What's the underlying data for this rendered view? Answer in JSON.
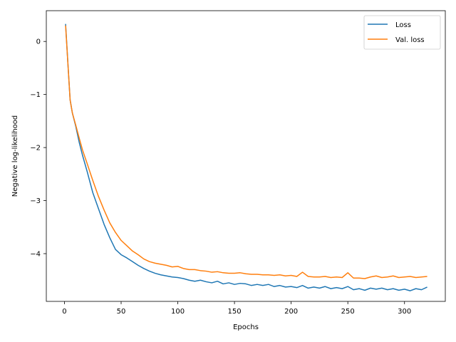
{
  "chart_data": {
    "type": "line",
    "title": "",
    "xlabel": "Epochs",
    "ylabel": "Negative log-likelihood",
    "xlim": [
      -16,
      336
    ],
    "ylim": [
      -4.9,
      0.58
    ],
    "xticks": [
      0,
      50,
      100,
      150,
      200,
      250,
      300
    ],
    "yticks": [
      0,
      -1,
      -2,
      -3,
      -4
    ],
    "ytick_labels": [
      "0",
      "−1",
      "−2",
      "−3",
      "−4"
    ],
    "grid": false,
    "legend_position": "top-right",
    "series": [
      {
        "name": "Loss",
        "color": "#1f77b4",
        "x": [
          1,
          3,
          5,
          7,
          10,
          13,
          16,
          20,
          25,
          30,
          35,
          40,
          45,
          50,
          55,
          60,
          65,
          70,
          75,
          80,
          85,
          90,
          95,
          100,
          105,
          110,
          115,
          120,
          125,
          130,
          135,
          140,
          145,
          150,
          155,
          160,
          165,
          170,
          175,
          180,
          185,
          190,
          195,
          200,
          205,
          210,
          215,
          220,
          225,
          230,
          235,
          240,
          245,
          250,
          255,
          260,
          265,
          270,
          275,
          280,
          285,
          290,
          295,
          300,
          305,
          310,
          315,
          320
        ],
        "y": [
          0.33,
          -0.4,
          -1.1,
          -1.35,
          -1.6,
          -1.9,
          -2.15,
          -2.45,
          -2.85,
          -3.15,
          -3.45,
          -3.7,
          -3.92,
          -4.02,
          -4.08,
          -4.15,
          -4.22,
          -4.28,
          -4.33,
          -4.37,
          -4.4,
          -4.42,
          -4.44,
          -4.45,
          -4.47,
          -4.5,
          -4.52,
          -4.5,
          -4.53,
          -4.55,
          -4.52,
          -4.57,
          -4.55,
          -4.58,
          -4.56,
          -4.57,
          -4.6,
          -4.58,
          -4.6,
          -4.58,
          -4.62,
          -4.6,
          -4.63,
          -4.62,
          -4.64,
          -4.6,
          -4.65,
          -4.63,
          -4.65,
          -4.62,
          -4.66,
          -4.64,
          -4.66,
          -4.62,
          -4.68,
          -4.66,
          -4.69,
          -4.65,
          -4.67,
          -4.65,
          -4.68,
          -4.66,
          -4.69,
          -4.67,
          -4.7,
          -4.66,
          -4.68,
          -4.63
        ]
      },
      {
        "name": "Val. loss",
        "color": "#ff7f0e",
        "x": [
          1,
          3,
          5,
          7,
          10,
          13,
          16,
          20,
          25,
          30,
          35,
          40,
          45,
          50,
          55,
          60,
          65,
          70,
          75,
          80,
          85,
          90,
          95,
          100,
          105,
          110,
          115,
          120,
          125,
          130,
          135,
          140,
          145,
          150,
          155,
          160,
          165,
          170,
          175,
          180,
          185,
          190,
          195,
          200,
          205,
          210,
          215,
          220,
          225,
          230,
          235,
          240,
          245,
          250,
          255,
          260,
          265,
          270,
          275,
          280,
          285,
          290,
          295,
          300,
          305,
          310,
          315,
          320
        ],
        "y": [
          0.3,
          -0.4,
          -1.1,
          -1.35,
          -1.58,
          -1.82,
          -2.05,
          -2.3,
          -2.62,
          -2.92,
          -3.18,
          -3.42,
          -3.6,
          -3.75,
          -3.85,
          -3.95,
          -4.02,
          -4.1,
          -4.15,
          -4.18,
          -4.2,
          -4.22,
          -4.25,
          -4.24,
          -4.28,
          -4.3,
          -4.3,
          -4.32,
          -4.33,
          -4.35,
          -4.34,
          -4.36,
          -4.37,
          -4.37,
          -4.36,
          -4.38,
          -4.39,
          -4.39,
          -4.4,
          -4.4,
          -4.41,
          -4.4,
          -4.42,
          -4.41,
          -4.43,
          -4.35,
          -4.43,
          -4.44,
          -4.44,
          -4.43,
          -4.45,
          -4.44,
          -4.45,
          -4.36,
          -4.46,
          -4.46,
          -4.47,
          -4.44,
          -4.42,
          -4.45,
          -4.44,
          -4.42,
          -4.45,
          -4.44,
          -4.43,
          -4.45,
          -4.44,
          -4.43
        ]
      }
    ]
  }
}
